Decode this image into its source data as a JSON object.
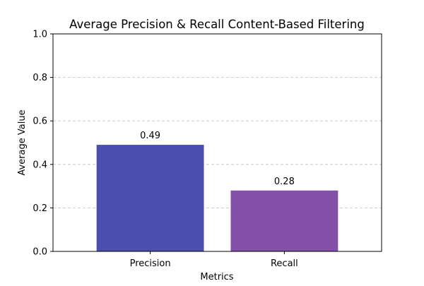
{
  "chart_data": {
    "type": "bar",
    "title": "Average Precision & Recall Content-Based Filtering",
    "xlabel": "Metrics",
    "ylabel": "Average Value",
    "categories": [
      "Precision",
      "Recall"
    ],
    "values": [
      0.49,
      0.28
    ],
    "data_labels": [
      "0.49",
      "0.28"
    ],
    "colors": [
      "#4b4eac",
      "#824fa9"
    ],
    "ylim": [
      0,
      1.0
    ],
    "yticks": [
      0.0,
      0.2,
      0.4,
      0.6,
      0.8,
      1.0
    ],
    "ytick_labels": [
      "0.0",
      "0.2",
      "0.4",
      "0.6",
      "0.8",
      "1.0"
    ],
    "grid": "y-dashed",
    "legend": "none"
  }
}
